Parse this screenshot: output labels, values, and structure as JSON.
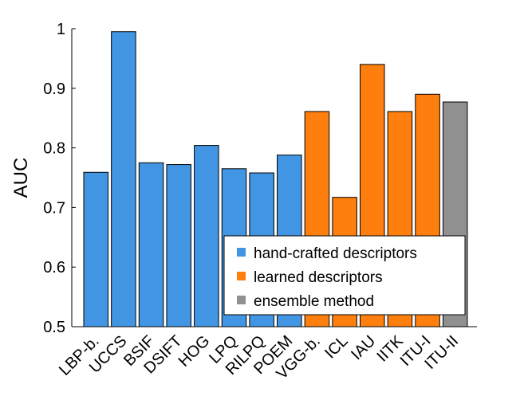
{
  "chart_data": {
    "type": "bar",
    "title": "",
    "xlabel": "",
    "ylabel": "AUC",
    "ylim": [
      0.5,
      1.0
    ],
    "yticks": [
      "0.5",
      "0.6",
      "0.7",
      "0.8",
      "0.9",
      "1"
    ],
    "grid": false,
    "legend_position": "lower-right",
    "categories": [
      "LBP-b.",
      "UCCS",
      "BSIF",
      "DSIFT",
      "HOG",
      "LPQ",
      "RILPQ",
      "POEM",
      "VGG-b.",
      "ICL",
      "IAU",
      "IITK",
      "ITU-I",
      "ITU-II"
    ],
    "values": [
      0.759,
      0.995,
      0.775,
      0.772,
      0.804,
      0.765,
      0.758,
      0.788,
      0.861,
      0.717,
      0.94,
      0.861,
      0.89,
      0.877
    ],
    "groups": [
      "hand",
      "hand",
      "hand",
      "hand",
      "hand",
      "hand",
      "hand",
      "hand",
      "learned",
      "learned",
      "learned",
      "learned",
      "learned",
      "ensemble"
    ],
    "legend": [
      {
        "key": "hand",
        "label": "hand-crafted descriptors",
        "color": "#4295e2"
      },
      {
        "key": "learned",
        "label": "learned descriptors",
        "color": "#ff7f0e"
      },
      {
        "key": "ensemble",
        "label": "ensemble method",
        "color": "#909090"
      }
    ]
  }
}
